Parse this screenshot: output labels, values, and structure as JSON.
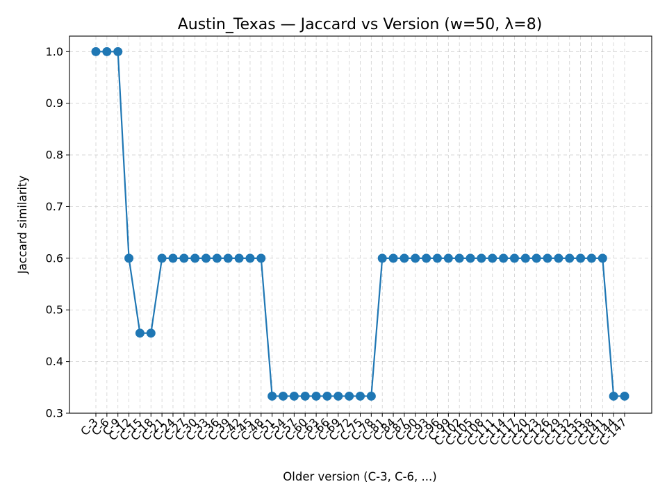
{
  "chart_data": {
    "type": "line",
    "title": "Austin_Texas — Jaccard vs Version (w=50, λ=8)",
    "xlabel": "Older version (C-3, C-6, ...)",
    "ylabel": "Jaccard similarity",
    "ylim": [
      0.3,
      1.03
    ],
    "yticks": [
      "0.3",
      "0.4",
      "0.5",
      "0.6",
      "0.7",
      "0.8",
      "0.9",
      "1.0"
    ],
    "grid": true,
    "color": "#1f77b4",
    "categories": [
      "C-3",
      "C-6",
      "C-9",
      "C-12",
      "C-15",
      "C-18",
      "C-21",
      "C-24",
      "C-27",
      "C-30",
      "C-33",
      "C-36",
      "C-39",
      "C-42",
      "C-45",
      "C-48",
      "C-51",
      "C-54",
      "C-57",
      "C-60",
      "C-63",
      "C-66",
      "C-69",
      "C-72",
      "C-75",
      "C-78",
      "C-81",
      "C-84",
      "C-87",
      "C-90",
      "C-93",
      "C-96",
      "C-99",
      "C-102",
      "C-105",
      "C-108",
      "C-111",
      "C-114",
      "C-117",
      "C-120",
      "C-123",
      "C-126",
      "C-129",
      "C-132",
      "C-135",
      "C-138",
      "C-141",
      "C-144",
      "C-147"
    ],
    "values": [
      1.0,
      1.0,
      1.0,
      0.6,
      0.455,
      0.455,
      0.6,
      0.6,
      0.6,
      0.6,
      0.6,
      0.6,
      0.6,
      0.6,
      0.6,
      0.6,
      0.333,
      0.333,
      0.333,
      0.333,
      0.333,
      0.333,
      0.333,
      0.333,
      0.333,
      0.333,
      0.6,
      0.6,
      0.6,
      0.6,
      0.6,
      0.6,
      0.6,
      0.6,
      0.6,
      0.6,
      0.6,
      0.6,
      0.6,
      0.6,
      0.6,
      0.6,
      0.6,
      0.6,
      0.6,
      0.6,
      0.6,
      0.333,
      0.333
    ]
  }
}
